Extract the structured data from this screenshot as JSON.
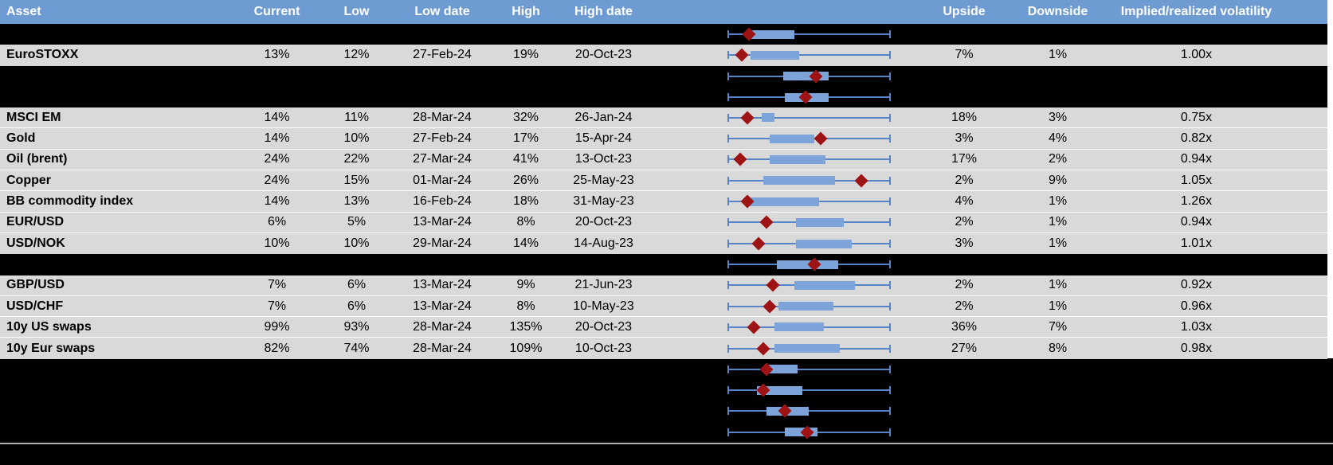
{
  "colors": {
    "header_bg": "#6d9bd2",
    "header_text": "#ffffff",
    "row_bg": "#d9d9d9",
    "hidden_row_bg": "#000000",
    "whisker_blue": "#5585c6",
    "box_blue": "#7ca4d9",
    "marker_red": "#9e1414",
    "separator_gray": "#b0b0b0",
    "row_gridline": "#ffffff"
  },
  "chart_data": {
    "type": "table+boxplot",
    "columns": [
      "Asset",
      "Current",
      "Low",
      "Low date",
      "High",
      "High date",
      "",
      "Upside",
      "Downside",
      "Implied/realized volatility"
    ],
    "boxplot_axis": {
      "scale": "normalized 0-1 per row",
      "whisker_min": 0,
      "whisker_max": 1,
      "marker_glyph": "red diamond"
    },
    "rows": [
      {
        "type": "hidden",
        "asset": "",
        "current": "",
        "low": "",
        "low_date": "",
        "high": "",
        "high_date": "",
        "upside": "",
        "downside": "",
        "vol": "",
        "box": {
          "whisker_lo": 0,
          "q1": 0.12,
          "q3": 0.41,
          "whisker_hi": 1,
          "marker": 0.13
        }
      },
      {
        "type": "data",
        "asset": "EuroSTOXX",
        "current": "13%",
        "low": "12%",
        "low_date": "27-Feb-24",
        "high": "19%",
        "high_date": "20-Oct-23",
        "upside": "7%",
        "downside": "1%",
        "vol": "1.00x",
        "box": {
          "whisker_lo": 0,
          "q1": 0.14,
          "q3": 0.44,
          "whisker_hi": 1,
          "marker": 0.09
        }
      },
      {
        "type": "hidden",
        "asset": "",
        "current": "",
        "low": "",
        "low_date": "",
        "high": "",
        "high_date": "",
        "upside": "",
        "downside": "",
        "vol": "",
        "box": {
          "whisker_lo": 0,
          "q1": 0.34,
          "q3": 0.62,
          "whisker_hi": 1,
          "marker": 0.54
        }
      },
      {
        "type": "hidden",
        "asset": "",
        "current": "",
        "low": "",
        "low_date": "",
        "high": "",
        "high_date": "",
        "upside": "",
        "downside": "",
        "vol": "",
        "box": {
          "whisker_lo": 0,
          "q1": 0.35,
          "q3": 0.62,
          "whisker_hi": 1,
          "marker": 0.48
        }
      },
      {
        "type": "data",
        "asset": "MSCI EM",
        "current": "14%",
        "low": "11%",
        "low_date": "28-Mar-24",
        "high": "32%",
        "high_date": "26-Jan-24",
        "upside": "18%",
        "downside": "3%",
        "vol": "0.75x",
        "box": {
          "whisker_lo": 0,
          "q1": 0.21,
          "q3": 0.29,
          "whisker_hi": 1,
          "marker": 0.12
        }
      },
      {
        "type": "data",
        "asset": "Gold",
        "current": "14%",
        "low": "10%",
        "low_date": "27-Feb-24",
        "high": "17%",
        "high_date": "15-Apr-24",
        "upside": "3%",
        "downside": "4%",
        "vol": "0.82x",
        "box": {
          "whisker_lo": 0,
          "q1": 0.26,
          "q3": 0.53,
          "whisker_hi": 1,
          "marker": 0.57
        }
      },
      {
        "type": "data",
        "asset": "Oil (brent)",
        "current": "24%",
        "low": "22%",
        "low_date": "27-Mar-24",
        "high": "41%",
        "high_date": "13-Oct-23",
        "upside": "17%",
        "downside": "2%",
        "vol": "0.94x",
        "box": {
          "whisker_lo": 0,
          "q1": 0.26,
          "q3": 0.6,
          "whisker_hi": 1,
          "marker": 0.08
        }
      },
      {
        "type": "data",
        "asset": "Copper",
        "current": "24%",
        "low": "15%",
        "low_date": "01-Mar-24",
        "high": "26%",
        "high_date": "25-May-23",
        "upside": "2%",
        "downside": "9%",
        "vol": "1.05x",
        "box": {
          "whisker_lo": 0,
          "q1": 0.22,
          "q3": 0.66,
          "whisker_hi": 1,
          "marker": 0.82
        }
      },
      {
        "type": "data",
        "asset": "BB commodity index",
        "current": "14%",
        "low": "13%",
        "low_date": "16-Feb-24",
        "high": "18%",
        "high_date": "31-May-23",
        "upside": "4%",
        "downside": "1%",
        "vol": "1.26x",
        "box": {
          "whisker_lo": 0,
          "q1": 0.13,
          "q3": 0.56,
          "whisker_hi": 1,
          "marker": 0.12
        }
      },
      {
        "type": "data",
        "asset": "EUR/USD",
        "current": "6%",
        "low": "5%",
        "low_date": "13-Mar-24",
        "high": "8%",
        "high_date": "20-Oct-23",
        "upside": "2%",
        "downside": "1%",
        "vol": "0.94x",
        "box": {
          "whisker_lo": 0,
          "q1": 0.42,
          "q3": 0.71,
          "whisker_hi": 1,
          "marker": 0.24
        }
      },
      {
        "type": "data",
        "asset": "USD/NOK",
        "current": "10%",
        "low": "10%",
        "low_date": "29-Mar-24",
        "high": "14%",
        "high_date": "14-Aug-23",
        "upside": "3%",
        "downside": "1%",
        "vol": "1.01x",
        "box": {
          "whisker_lo": 0,
          "q1": 0.42,
          "q3": 0.76,
          "whisker_hi": 1,
          "marker": 0.19
        }
      },
      {
        "type": "hidden",
        "asset": "",
        "current": "",
        "low": "",
        "low_date": "",
        "high": "",
        "high_date": "",
        "upside": "",
        "downside": "",
        "vol": "",
        "box": {
          "whisker_lo": 0,
          "q1": 0.3,
          "q3": 0.68,
          "whisker_hi": 1,
          "marker": 0.53
        }
      },
      {
        "type": "data",
        "asset": "GBP/USD",
        "current": "7%",
        "low": "6%",
        "low_date": "13-Mar-24",
        "high": "9%",
        "high_date": "21-Jun-23",
        "upside": "2%",
        "downside": "1%",
        "vol": "0.92x",
        "box": {
          "whisker_lo": 0,
          "q1": 0.41,
          "q3": 0.78,
          "whisker_hi": 1,
          "marker": 0.28
        }
      },
      {
        "type": "data",
        "asset": "USD/CHF",
        "current": "7%",
        "low": "6%",
        "low_date": "13-Mar-24",
        "high": "8%",
        "high_date": "10-May-23",
        "upside": "2%",
        "downside": "1%",
        "vol": "0.96x",
        "box": {
          "whisker_lo": 0,
          "q1": 0.31,
          "q3": 0.65,
          "whisker_hi": 1,
          "marker": 0.26
        }
      },
      {
        "type": "data",
        "asset": "10y US swaps",
        "current": "99%",
        "low": "93%",
        "low_date": "28-Mar-24",
        "high": "135%",
        "high_date": "20-Oct-23",
        "upside": "36%",
        "downside": "7%",
        "vol": "1.03x",
        "box": {
          "whisker_lo": 0,
          "q1": 0.29,
          "q3": 0.59,
          "whisker_hi": 1,
          "marker": 0.16
        }
      },
      {
        "type": "data",
        "asset": "10y Eur swaps",
        "current": "82%",
        "low": "74%",
        "low_date": "28-Mar-24",
        "high": "109%",
        "high_date": "10-Oct-23",
        "upside": "27%",
        "downside": "8%",
        "vol": "0.98x",
        "box": {
          "whisker_lo": 0,
          "q1": 0.29,
          "q3": 0.69,
          "whisker_hi": 1,
          "marker": 0.22
        }
      },
      {
        "type": "hidden",
        "asset": "",
        "current": "",
        "low": "",
        "low_date": "",
        "high": "",
        "high_date": "",
        "upside": "",
        "downside": "",
        "vol": "",
        "box": {
          "whisker_lo": 0,
          "q1": 0.24,
          "q3": 0.43,
          "whisker_hi": 1,
          "marker": 0.24
        }
      },
      {
        "type": "hidden",
        "asset": "",
        "current": "",
        "low": "",
        "low_date": "",
        "high": "",
        "high_date": "",
        "upside": "",
        "downside": "",
        "vol": "",
        "box": {
          "whisker_lo": 0,
          "q1": 0.18,
          "q3": 0.46,
          "whisker_hi": 1,
          "marker": 0.22
        }
      },
      {
        "type": "hidden",
        "asset": "",
        "current": "",
        "low": "",
        "low_date": "",
        "high": "",
        "high_date": "",
        "upside": "",
        "downside": "",
        "vol": "",
        "box": {
          "whisker_lo": 0,
          "q1": 0.24,
          "q3": 0.5,
          "whisker_hi": 1,
          "marker": 0.35
        }
      },
      {
        "type": "hidden",
        "asset": "",
        "current": "",
        "low": "",
        "low_date": "",
        "high": "",
        "high_date": "",
        "upside": "",
        "downside": "",
        "vol": "",
        "box": {
          "whisker_lo": 0,
          "q1": 0.35,
          "q3": 0.55,
          "whisker_hi": 1,
          "marker": 0.49
        }
      }
    ]
  }
}
